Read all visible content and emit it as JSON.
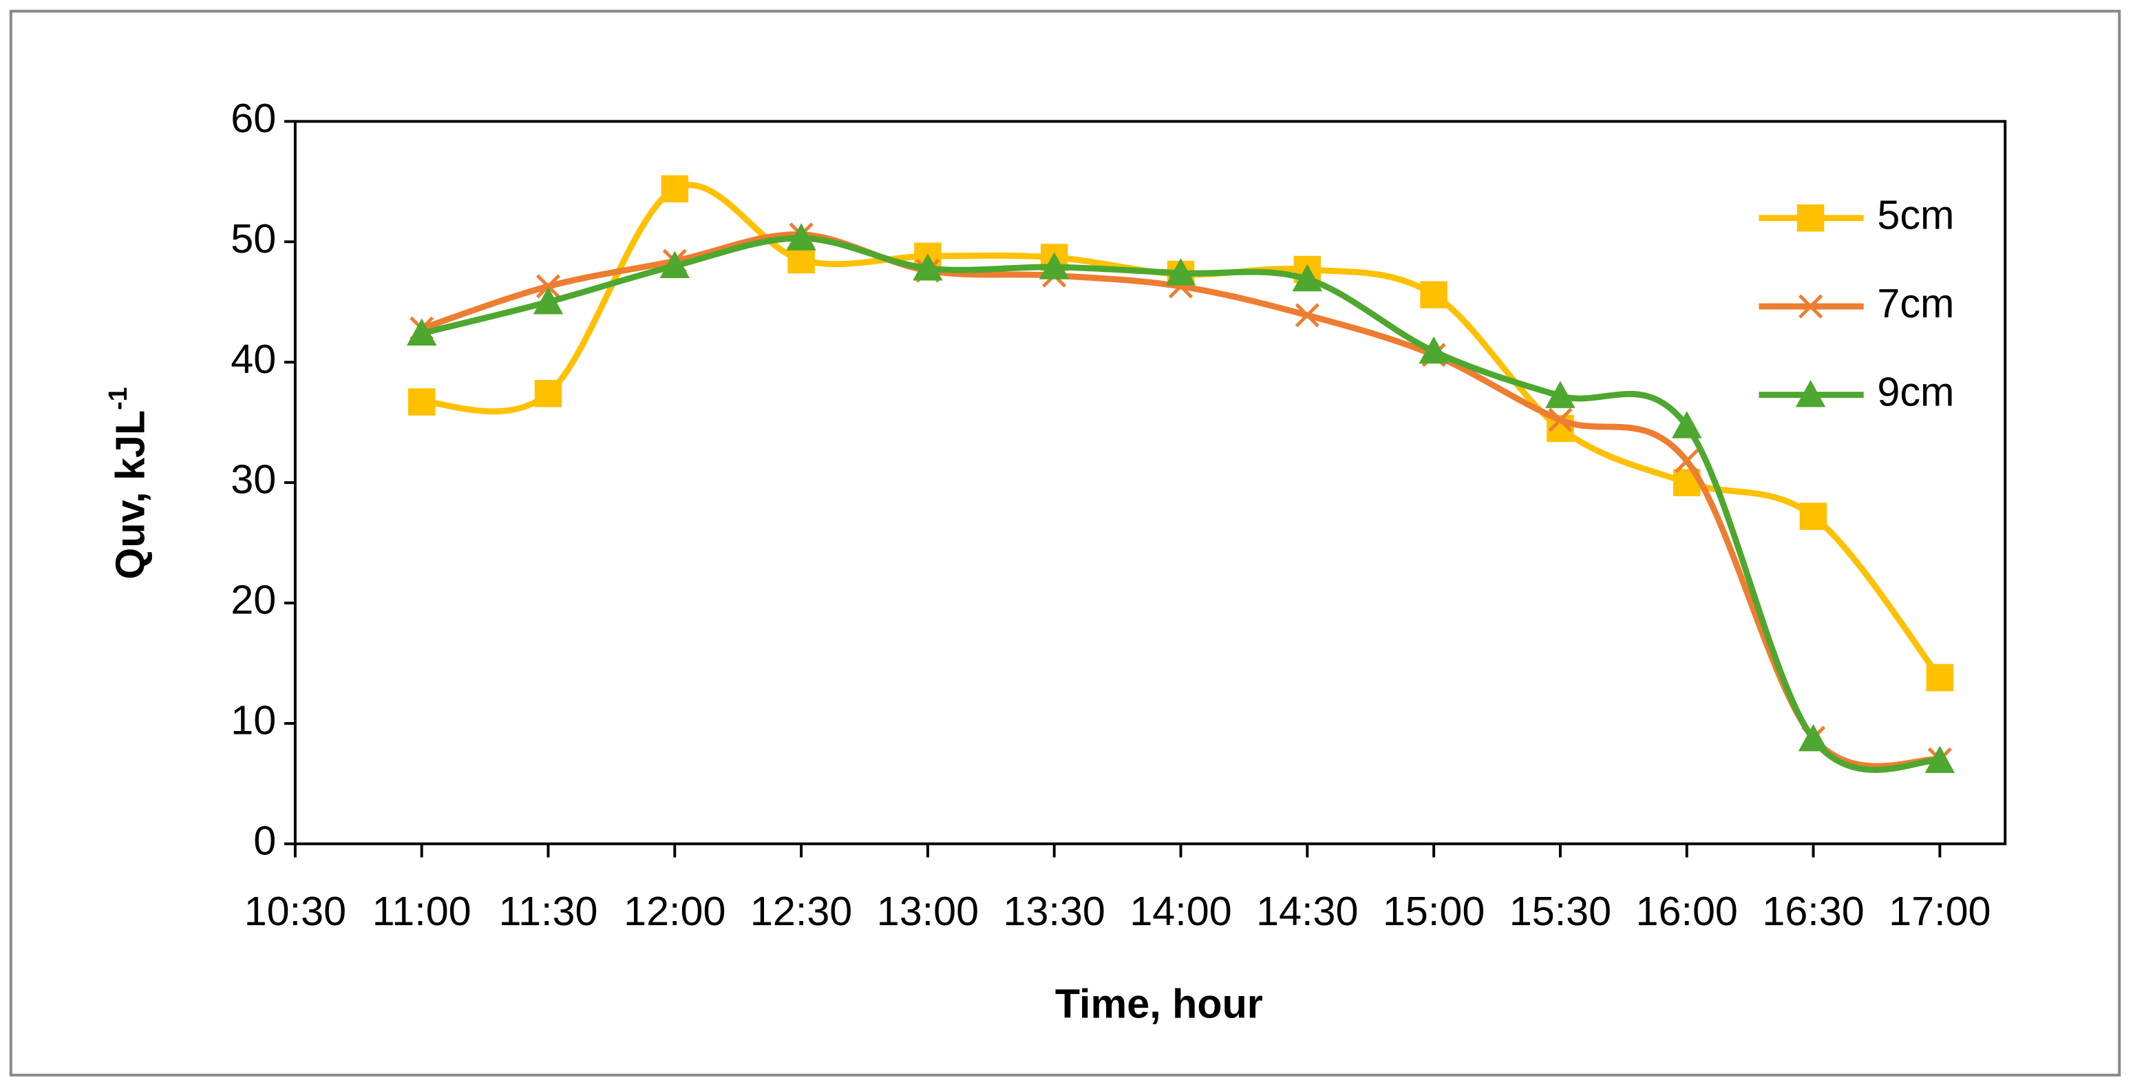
{
  "chart_data": {
    "type": "line",
    "x_label": "Time, hour",
    "y_label": "Quv, kJL",
    "y_label_sup": "-1",
    "categories": [
      "10:30",
      "11:00",
      "11:30",
      "12:00",
      "12:30",
      "13:00",
      "13:30",
      "14:00",
      "14:30",
      "15:00",
      "15:30",
      "16:00",
      "16:30",
      "17:00"
    ],
    "series": [
      {
        "name": "5cm",
        "color": "#ffc000",
        "marker": "square",
        "values": [
          null,
          36.7,
          37.4,
          54.4,
          48.5,
          48.8,
          48.7,
          47.3,
          47.7,
          45.6,
          34.5,
          30.0,
          27.2,
          13.8
        ]
      },
      {
        "name": "7cm",
        "color": "#ed7d31",
        "marker": "x",
        "values": [
          null,
          42.8,
          46.3,
          48.4,
          50.6,
          47.6,
          47.2,
          46.3,
          43.9,
          40.6,
          35.2,
          31.8,
          8.8,
          7.0
        ]
      },
      {
        "name": "9cm",
        "color": "#4ea72e",
        "marker": "triangle",
        "values": [
          null,
          42.4,
          45.0,
          48.0,
          50.3,
          47.8,
          47.9,
          47.4,
          46.9,
          40.9,
          37.2,
          34.7,
          8.7,
          6.9
        ]
      }
    ],
    "ylim": [
      0,
      60
    ],
    "yticks": [
      0,
      10,
      20,
      30,
      40,
      50,
      60
    ],
    "smooth": true,
    "legend": "right"
  }
}
